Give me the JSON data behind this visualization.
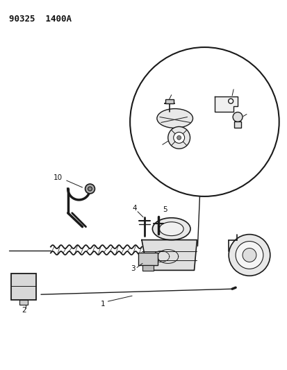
{
  "title": "90325  1400A",
  "background_color": "#ffffff",
  "line_color": "#1a1a1a",
  "label_color": "#111111",
  "figsize": [
    4.14,
    5.33
  ],
  "dpi": 100
}
